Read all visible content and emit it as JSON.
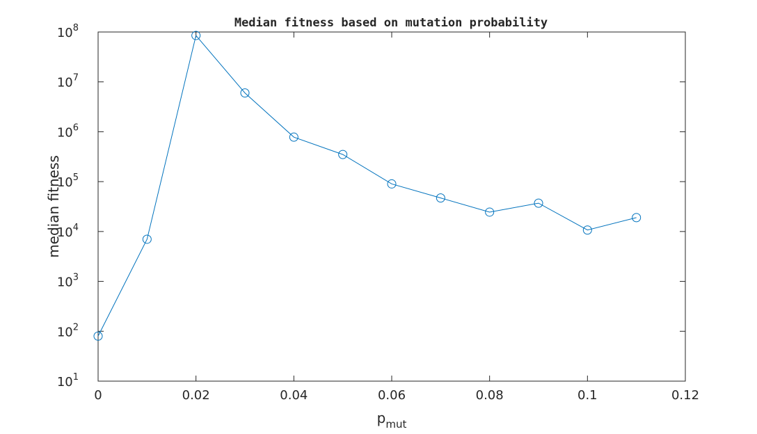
{
  "chart_data": {
    "type": "line",
    "title": "Median fitness based on mutation probability",
    "xlabel": "p",
    "xlabel_subscript": "mut",
    "ylabel": "median fitness",
    "yscale": "log",
    "xlim": [
      0,
      0.12
    ],
    "ylim": [
      10,
      100000000
    ],
    "x_ticks": [
      "0",
      "0.02",
      "0.04",
      "0.06",
      "0.08",
      "0.1",
      "0.12"
    ],
    "y_ticks": [
      {
        "base": "10",
        "exp": "1"
      },
      {
        "base": "10",
        "exp": "2"
      },
      {
        "base": "10",
        "exp": "3"
      },
      {
        "base": "10",
        "exp": "4"
      },
      {
        "base": "10",
        "exp": "5"
      },
      {
        "base": "10",
        "exp": "6"
      },
      {
        "base": "10",
        "exp": "7"
      },
      {
        "base": "10",
        "exp": "8"
      }
    ],
    "grid": false,
    "marker": "circle",
    "series": [
      {
        "x": [
          0,
          0.01,
          0.02,
          0.03,
          0.04,
          0.05,
          0.06,
          0.07,
          0.08,
          0.09,
          0.1,
          0.11
        ],
        "y": [
          80,
          7000,
          85000000,
          6000000,
          780000,
          350000,
          90000,
          47000,
          24500,
          37000,
          10700,
          19000
        ],
        "color": "#0072BD"
      }
    ]
  }
}
